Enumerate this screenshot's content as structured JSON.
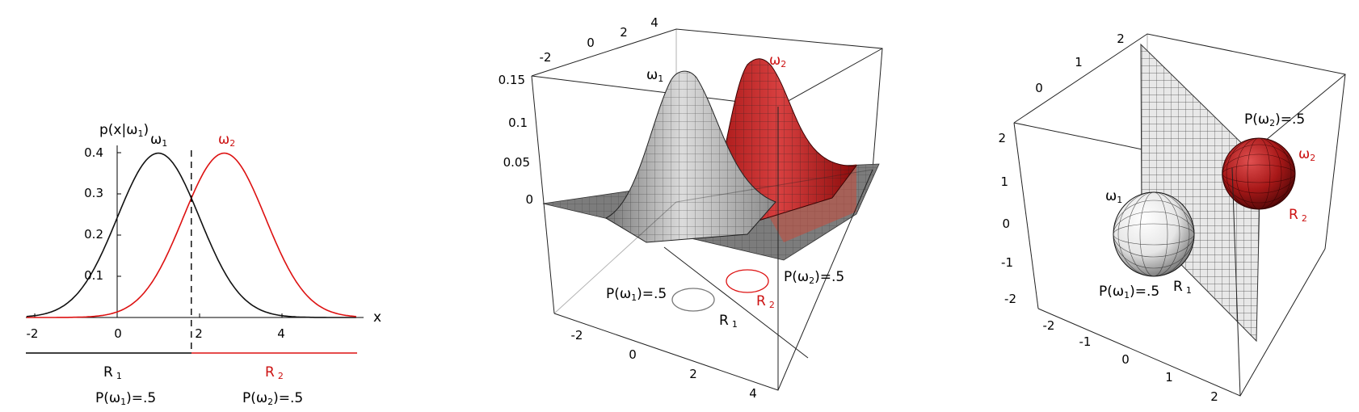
{
  "panel1": {
    "ylabel": "p(x|ω",
    "ylabel_close": ")",
    "yticks": [
      "0.4",
      "0.3",
      "0.2",
      "0.1"
    ],
    "xticks": [
      "-2",
      "0",
      "2",
      "4"
    ],
    "xaxis": "x",
    "omega": "ω",
    "sub1": "1",
    "sub2": "2",
    "region1": "R",
    "region2": "R",
    "prior1": "P(ω",
    "prior2": "P(ω",
    "prior_tail": ")=.5",
    "boundary_x": 1.8,
    "mean1": 1.0,
    "mean2": 2.6,
    "sigma": 1.0,
    "peak": 0.4
  },
  "panel2": {
    "zticks": [
      "0.15",
      "0.1",
      "0.05",
      "0"
    ],
    "top_ticks": [
      "-2",
      "0",
      "2",
      "4"
    ],
    "bottom_ticks": [
      "-2",
      "0",
      "2",
      "4"
    ],
    "omega": "ω",
    "sub1": "1",
    "sub2": "2",
    "prior1": "P(ω",
    "prior2": "P(ω",
    "prior_tail": ")=.5",
    "region": "R"
  },
  "panel3": {
    "left_ticks": [
      "2",
      "1",
      "0",
      "-1",
      "-2"
    ],
    "top_ticks": [
      "2",
      "1",
      "0"
    ],
    "bottom_ticks": [
      "-2",
      "-1",
      "0",
      "1",
      "2"
    ],
    "omega": "ω",
    "sub1": "1",
    "sub2": "2",
    "prior1": "P(ω",
    "prior2": "P(ω",
    "prior_tail": ")=.5",
    "region": "R"
  },
  "colors": {
    "class1": "#111111",
    "class2": "#dd1111",
    "surface_gray": "#b8b8b8",
    "surface_red": "#cc2222"
  }
}
